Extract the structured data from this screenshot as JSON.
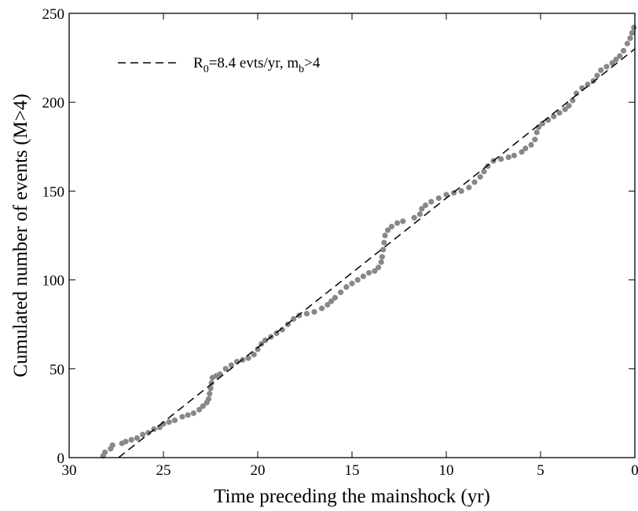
{
  "chart_data": {
    "type": "scatter",
    "xlabel": "Time preceding the mainshock (yr)",
    "ylabel": "Cumulated number of events (M>4)",
    "xlim": [
      30,
      0
    ],
    "ylim": [
      0,
      250
    ],
    "xticks": [
      30,
      25,
      20,
      15,
      10,
      5,
      0
    ],
    "yticks": [
      0,
      50,
      100,
      150,
      200,
      250
    ],
    "legend": "upper left",
    "series": [
      {
        "style": "points",
        "color": "#888888",
        "x": [
          28.2,
          28.1,
          27.8,
          27.7,
          27.2,
          27.0,
          26.7,
          26.4,
          26.1,
          25.8,
          25.5,
          25.2,
          25.0,
          24.7,
          24.4,
          24.0,
          23.7,
          23.4,
          23.1,
          22.9,
          22.7,
          22.6,
          22.55,
          22.5,
          22.45,
          22.4,
          22.2,
          22.0,
          21.7,
          21.4,
          21.1,
          20.8,
          20.5,
          20.2,
          20.0,
          19.8,
          19.6,
          19.3,
          19.0,
          18.7,
          18.4,
          18.1,
          17.8,
          17.4,
          17.0,
          16.6,
          16.3,
          16.1,
          15.9,
          15.6,
          15.3,
          15.0,
          14.7,
          14.4,
          14.1,
          13.8,
          13.6,
          13.45,
          13.4,
          13.35,
          13.3,
          13.25,
          13.1,
          12.9,
          12.6,
          12.3,
          11.7,
          11.4,
          11.3,
          11.1,
          10.8,
          10.4,
          10.0,
          9.6,
          9.2,
          8.8,
          8.5,
          8.2,
          8.0,
          7.8,
          7.5,
          7.1,
          6.7,
          6.4,
          6.0,
          5.8,
          5.5,
          5.3,
          5.2,
          5.1,
          4.9,
          4.6,
          4.3,
          4.0,
          3.7,
          3.5,
          3.3,
          3.1,
          2.8,
          2.5,
          2.2,
          2.0,
          1.8,
          1.5,
          1.2,
          1.0,
          0.8,
          0.6,
          0.4,
          0.25,
          0.15,
          0.05
        ],
        "values": [
          1,
          3,
          5,
          7,
          8,
          9,
          10,
          11,
          13,
          14,
          16,
          17,
          19,
          20,
          21,
          23,
          24,
          25,
          27,
          29,
          31,
          33,
          36,
          39,
          42,
          45,
          46,
          47,
          50,
          52,
          54,
          55,
          56,
          58,
          61,
          64,
          66,
          68,
          70,
          72,
          75,
          78,
          80,
          81,
          82,
          84,
          86,
          88,
          90,
          93,
          96,
          98,
          100,
          102,
          104,
          105,
          107,
          110,
          113,
          117,
          121,
          125,
          128,
          130,
          132,
          133,
          135,
          137,
          140,
          142,
          144,
          146,
          148,
          149,
          150,
          152,
          155,
          158,
          161,
          164,
          167,
          168,
          169,
          170,
          172,
          174,
          176,
          179,
          183,
          186,
          188,
          190,
          192,
          194,
          196,
          198,
          201,
          205,
          208,
          210,
          212,
          215,
          218,
          220,
          222,
          224,
          226,
          229,
          233,
          236,
          239,
          242
        ]
      },
      {
        "style": "dashed",
        "color": "#000000",
        "name": [
          {
            "text": "R"
          },
          {
            "text": "0",
            "subscript": true
          },
          {
            "text": "=8.4 evts/yr, m"
          },
          {
            "text": "b",
            "subscript": true
          },
          {
            "text": ">4"
          }
        ],
        "x": [
          27.38,
          0
        ],
        "values": [
          0,
          230
        ]
      }
    ]
  }
}
